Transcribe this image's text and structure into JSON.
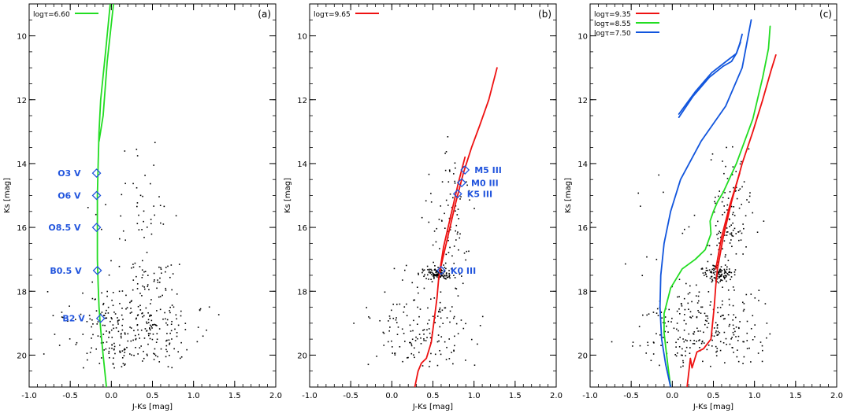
{
  "chart_data": [
    {
      "type": "scatter",
      "panel_label": "(a)",
      "xlabel": "J-Ks [mag]",
      "ylabel": "Ks [mag]",
      "xlim": [
        -1.0,
        2.0
      ],
      "ylim": [
        21.0,
        9.0
      ],
      "x_ticks": [
        "-1.0",
        "-0.5",
        "0.0",
        "0.5",
        "1.0",
        "1.5",
        "2.0"
      ],
      "y_ticks": [
        "10",
        "12",
        "14",
        "16",
        "18",
        "20"
      ],
      "legend": [
        {
          "name": "logτ=6.60",
          "color": "#22dd22"
        }
      ],
      "series": [
        {
          "name": "logτ=6.60",
          "color": "#22dd22",
          "lines": [
            {
              "x": [
                -0.01,
                -0.07,
                -0.13,
                -0.15,
                -0.16,
                -0.17,
                -0.17,
                -0.17,
                -0.16,
                -0.15,
                -0.13,
                -0.1,
                -0.06
              ],
              "y": [
                8.9,
                10.5,
                12.0,
                13.0,
                14.0,
                15.0,
                16.0,
                17.0,
                17.8,
                18.5,
                19.2,
                20.0,
                21.0
              ]
            },
            {
              "x": [
                0.03,
                -0.05,
                -0.1,
                -0.15
              ],
              "y": [
                8.9,
                10.8,
                12.5,
                13.3
              ]
            }
          ]
        }
      ],
      "markers": [
        {
          "label": "O3  V",
          "x": -0.18,
          "y": 14.3
        },
        {
          "label": "O6  V",
          "x": -0.18,
          "y": 15.0
        },
        {
          "label": "O8.5  V",
          "x": -0.18,
          "y": 16.0
        },
        {
          "label": "B0.5  V",
          "x": -0.17,
          "y": 17.35
        },
        {
          "label": "B2  V",
          "x": -0.13,
          "y": 18.85
        }
      ],
      "marker_color": "#2255dd",
      "point_cloud": {
        "seed": 11,
        "groups": [
          {
            "n": 320,
            "cx": 0.25,
            "cy": 19.3,
            "sx": 0.38,
            "sy": 0.75
          },
          {
            "n": 40,
            "cx": 0.55,
            "cy": 17.5,
            "sx": 0.2,
            "sy": 0.35
          },
          {
            "n": 45,
            "cx": 0.3,
            "cy": 15.6,
            "sx": 0.28,
            "sy": 0.9
          }
        ]
      }
    },
    {
      "type": "scatter",
      "panel_label": "(b)",
      "xlabel": "J-Ks [mag]",
      "ylabel": "Ks [mag]",
      "xlim": [
        -1.0,
        2.0
      ],
      "ylim": [
        21.0,
        9.0
      ],
      "x_ticks": [
        "-1.0",
        "-0.5",
        "0.0",
        "0.5",
        "1.0",
        "1.5",
        "2.0"
      ],
      "y_ticks": [
        "10",
        "12",
        "14",
        "16",
        "18",
        "20"
      ],
      "legend": [
        {
          "name": "logτ=9.65",
          "color": "#ee1111"
        }
      ],
      "series": [
        {
          "name": "logτ=9.65",
          "color": "#ee1111",
          "lines": [
            {
              "x": [
                0.28,
                0.32,
                0.36,
                0.42,
                0.48,
                0.52,
                0.55,
                0.57,
                0.6,
                0.68,
                0.77,
                0.87,
                0.97,
                1.07,
                1.18,
                1.28
              ],
              "y": [
                21.0,
                20.5,
                20.25,
                20.1,
                19.6,
                18.8,
                18.2,
                17.6,
                17.2,
                16.3,
                15.3,
                14.3,
                13.5,
                12.8,
                12.0,
                11.0
              ]
            },
            {
              "x": [
                0.57,
                0.63,
                0.72,
                0.81,
                0.89
              ],
              "y": [
                17.6,
                16.6,
                15.6,
                14.6,
                13.8
              ]
            }
          ]
        }
      ],
      "markers": [
        {
          "label": "M5  III",
          "x": 0.89,
          "y": 14.2
        },
        {
          "label": "M0  III",
          "x": 0.85,
          "y": 14.6
        },
        {
          "label": "K5  III",
          "x": 0.8,
          "y": 14.95
        },
        {
          "label": "K0  III",
          "x": 0.6,
          "y": 17.35
        }
      ],
      "marker_color": "#2255dd",
      "point_cloud": {
        "seed": 23,
        "groups": [
          {
            "n": 170,
            "cx": 0.35,
            "cy": 19.2,
            "sx": 0.3,
            "sy": 0.75
          },
          {
            "n": 110,
            "cx": 0.55,
            "cy": 17.45,
            "sx": 0.09,
            "sy": 0.12
          },
          {
            "n": 90,
            "cx": 0.72,
            "cy": 15.8,
            "sx": 0.12,
            "sy": 1.1
          }
        ]
      }
    },
    {
      "type": "scatter",
      "panel_label": "(c)",
      "xlabel": "J-Ks [mag]",
      "ylabel": "Ks [mag]",
      "xlim": [
        -1.0,
        2.0
      ],
      "ylim": [
        21.0,
        9.0
      ],
      "x_ticks": [
        "-1.0",
        "-0.5",
        "0.0",
        "0.5",
        "1.0",
        "1.5",
        "2.0"
      ],
      "y_ticks": [
        "10",
        "12",
        "14",
        "16",
        "18",
        "20"
      ],
      "legend": [
        {
          "name": "logτ=9.35",
          "color": "#ee1111"
        },
        {
          "name": "logτ=8.55",
          "color": "#22dd22"
        },
        {
          "name": "logτ=7.50",
          "color": "#1155dd"
        }
      ],
      "series": [
        {
          "name": "logτ=9.35",
          "color": "#ee1111",
          "lines": [
            {
              "x": [
                0.18,
                0.22,
                0.24,
                0.3,
                0.38,
                0.47,
                0.51,
                0.53,
                0.55,
                0.62,
                0.72,
                0.85,
                0.98,
                1.1,
                1.2,
                1.26
              ],
              "y": [
                21.0,
                20.1,
                20.4,
                19.9,
                19.8,
                19.5,
                18.5,
                17.8,
                17.3,
                16.3,
                15.2,
                14.0,
                13.0,
                12.0,
                11.1,
                10.6
              ]
            },
            {
              "x": [
                0.53,
                0.6,
                0.7,
                0.82
              ],
              "y": [
                17.3,
                16.3,
                15.3,
                14.3
              ]
            }
          ]
        },
        {
          "name": "logτ=8.55",
          "color": "#22dd22",
          "lines": [
            {
              "x": [
                -0.02,
                -0.06,
                -0.1,
                -0.1,
                -0.02,
                0.12,
                0.28,
                0.4,
                0.47,
                0.46,
                0.5,
                0.55,
                0.62,
                0.78,
                0.98,
                1.1,
                1.17,
                1.19
              ],
              "y": [
                21.0,
                20.2,
                19.3,
                18.7,
                17.9,
                17.3,
                17.0,
                16.7,
                16.2,
                15.8,
                15.5,
                15.2,
                14.9,
                14.0,
                12.6,
                11.3,
                10.4,
                9.7
              ]
            }
          ]
        },
        {
          "name": "logτ=7.50",
          "color": "#1155dd",
          "lines": [
            {
              "x": [
                -0.02,
                -0.08,
                -0.13,
                -0.15,
                -0.14,
                -0.1,
                -0.02,
                0.1,
                0.35,
                0.65,
                0.85,
                0.96
              ],
              "y": [
                21.0,
                20.3,
                19.5,
                18.5,
                17.5,
                16.5,
                15.5,
                14.5,
                13.3,
                12.2,
                11.0,
                9.5
              ]
            },
            {
              "x": [
                0.08,
                0.25,
                0.45,
                0.62,
                0.72,
                0.78,
                0.82,
                0.85
              ],
              "y": [
                12.55,
                11.9,
                11.3,
                10.95,
                10.8,
                10.55,
                10.25,
                9.95
              ]
            },
            {
              "x": [
                0.08,
                0.28,
                0.48,
                0.68,
                0.78,
                0.83
              ],
              "y": [
                12.45,
                11.75,
                11.15,
                10.75,
                10.55,
                10.2
              ]
            }
          ]
        }
      ],
      "markers": [],
      "marker_color": "#2255dd",
      "point_cloud": {
        "seed": 37,
        "groups": [
          {
            "n": 260,
            "cx": 0.35,
            "cy": 19.3,
            "sx": 0.35,
            "sy": 0.7
          },
          {
            "n": 110,
            "cx": 0.56,
            "cy": 17.45,
            "sx": 0.09,
            "sy": 0.13
          },
          {
            "n": 110,
            "cx": 0.72,
            "cy": 15.8,
            "sx": 0.12,
            "sy": 1.1
          },
          {
            "n": 30,
            "cx": 0.3,
            "cy": 16.5,
            "sx": 0.5,
            "sy": 1.4
          }
        ]
      }
    }
  ]
}
